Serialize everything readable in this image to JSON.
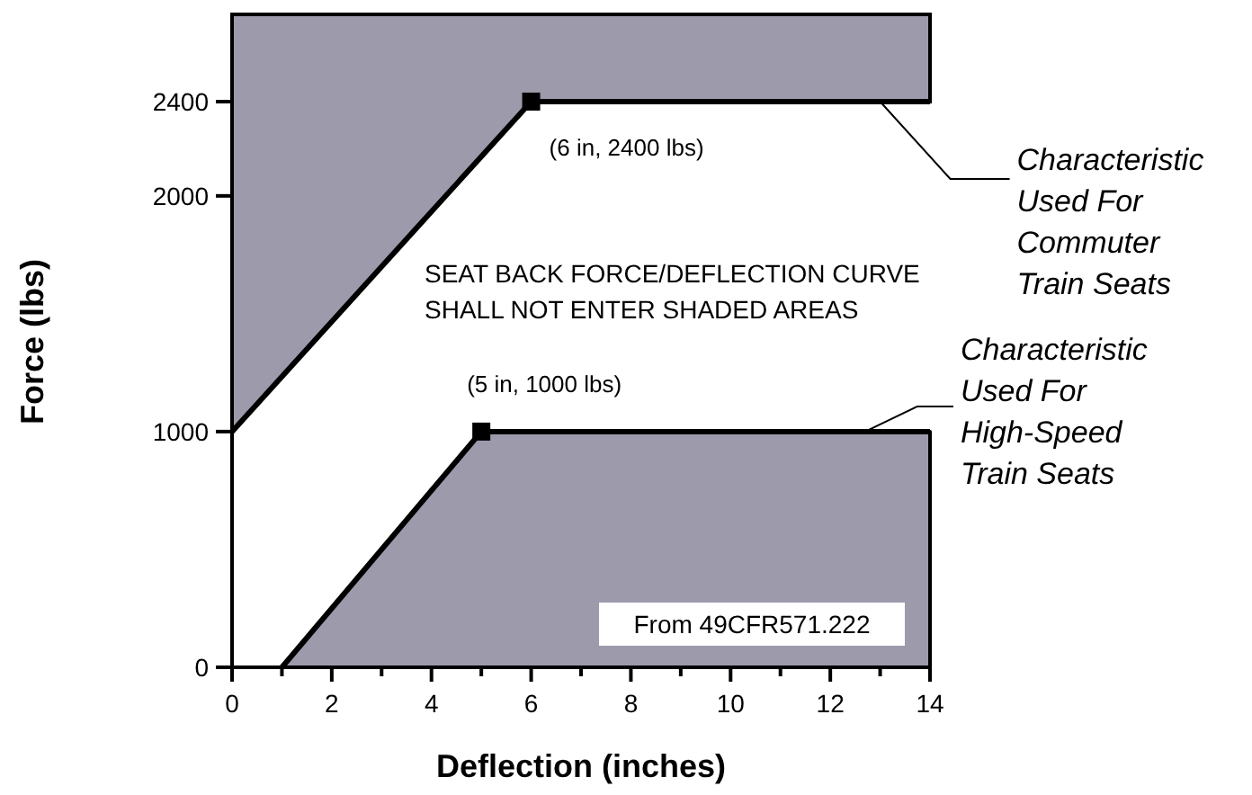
{
  "chart_data": {
    "type": "line",
    "xlabel": "Deflection (inches)",
    "ylabel": "Force (lbs)",
    "xlim": [
      0,
      14
    ],
    "ylim": [
      0,
      2770
    ],
    "xticks": [
      0,
      {
        "value": 1,
        "label": null
      },
      2,
      {
        "value": 3,
        "label": null
      },
      4,
      {
        "value": 5,
        "label": null
      },
      6,
      {
        "value": 7,
        "label": null
      },
      8,
      {
        "value": 9,
        "label": null
      },
      10,
      {
        "value": 11,
        "label": null
      },
      12,
      {
        "value": 13,
        "label": null
      },
      14
    ],
    "yticks": [
      0,
      1000,
      2000,
      2400
    ],
    "grid": false,
    "series": [
      {
        "color": "#000000",
        "marker": "none",
        "x": [
          0,
          6,
          14
        ],
        "values": [
          1000,
          2400,
          2400
        ],
        "lower": [
          1000,
          2400,
          2400
        ],
        "upper": [
          2770,
          2770,
          2770
        ]
      },
      {
        "type": "area",
        "color": "#9c9aab",
        "x": [
          1,
          5,
          14
        ],
        "values": [
          0,
          1000,
          1000
        ]
      },
      {
        "type": "scatter",
        "color": "#000000",
        "marker": "square",
        "x": [
          5,
          6
        ],
        "values": [
          1000,
          2400
        ]
      }
    ],
    "annotations": [
      "SEAT BACK FORCE/DEFLECTION CURVE\nSHALL NOT ENTER SHADED AREAS",
      "From 49CFR571.222",
      {
        "text": "(6 in, 2400 lbs)",
        "x": 6,
        "y": 2400
      },
      {
        "text": "(5 in, 1000 lbs)",
        "x": 5,
        "y": 1000
      },
      {
        "text": "Characteristic\nUsed For\nCommuter\nTrain Seats",
        "x": 13,
        "y": 2400
      },
      {
        "text": "Characteristic\nUsed For\nHigh-Speed\nTrain Seats",
        "x": 12.7,
        "y": 1000
      }
    ]
  }
}
